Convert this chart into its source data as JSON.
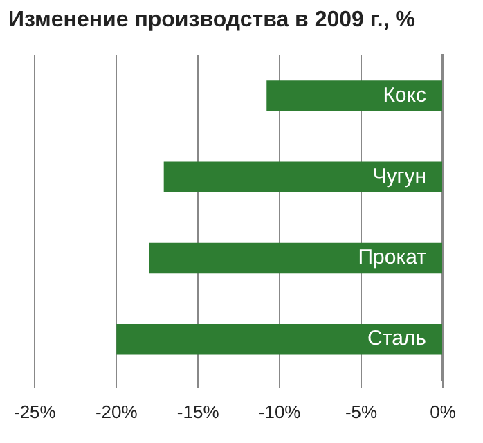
{
  "chart_data": {
    "type": "bar",
    "orientation": "horizontal",
    "title": "Изменение производства в 2009 г., %",
    "categories": [
      "Кокс",
      "Чугун",
      "Прокат",
      "Сталь"
    ],
    "values": [
      -10.8,
      -17.1,
      -18.0,
      -20.0
    ],
    "color": "#2e7d32",
    "xlim": [
      -25,
      0
    ],
    "xticks": [
      {
        "value": -25,
        "label": "-25%"
      },
      {
        "value": -20,
        "label": "-20%"
      },
      {
        "value": -15,
        "label": "-15%"
      },
      {
        "value": -10,
        "label": "-10%"
      },
      {
        "value": -5,
        "label": "-5%"
      },
      {
        "value": 0,
        "label": "0%"
      }
    ],
    "grid": "x",
    "legend": false
  }
}
